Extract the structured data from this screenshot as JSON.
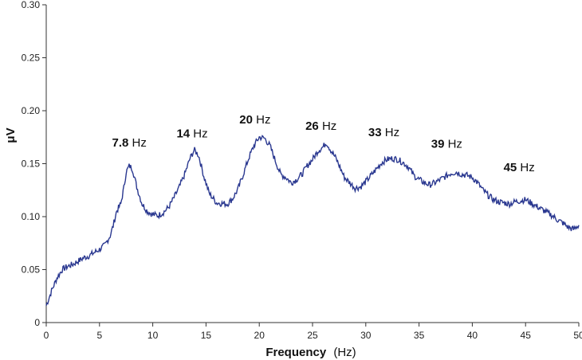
{
  "chart_data": {
    "type": "line",
    "title": "",
    "xlabel_main": "Frequency",
    "xlabel_unit": "(Hz)",
    "ylabel": "μV",
    "xlim": [
      0,
      50
    ],
    "ylim": [
      0,
      0.3
    ],
    "x_ticks": [
      "0",
      "5",
      "10",
      "15",
      "20",
      "25",
      "30",
      "35",
      "40",
      "45",
      "50"
    ],
    "y_ticks": [
      "0",
      "0.05",
      "0.10",
      "0.15",
      "0.20",
      "0.25",
      "0.30"
    ],
    "grid": false,
    "line_color": "#2a3890",
    "series": [
      {
        "x": [
          0,
          0.5,
          1,
          1.5,
          2,
          2.5,
          3,
          3.5,
          4,
          4.5,
          5,
          5.5,
          6,
          6.3,
          6.6,
          7,
          7.3,
          7.5,
          7.8,
          8.1,
          8.5,
          9,
          9.5,
          10,
          10.5,
          11,
          11.5,
          12,
          12.5,
          13,
          13.5,
          13.9,
          14.3,
          14.8,
          15.3,
          16,
          17,
          17.5,
          18,
          18.5,
          19,
          19.5,
          20,
          20.5,
          21,
          21.5,
          22,
          22.5,
          23,
          23.5,
          24,
          24.5,
          25,
          25.5,
          26,
          26.3,
          26.7,
          27.2,
          28,
          28.5,
          29,
          29.5,
          30,
          30.5,
          31,
          31.5,
          32,
          32.5,
          33,
          33.5,
          34,
          34.5,
          35,
          35.5,
          36,
          36.5,
          37,
          37.5,
          38,
          38.5,
          39,
          39.5,
          40,
          40.5,
          41,
          41.5,
          42,
          42.5,
          43,
          43.5,
          44,
          44.5,
          45,
          45.5,
          46,
          46.5,
          47,
          47.5,
          48,
          48.5,
          49,
          49.5,
          50
        ],
        "y": [
          0.016,
          0.03,
          0.042,
          0.05,
          0.053,
          0.055,
          0.058,
          0.061,
          0.063,
          0.066,
          0.069,
          0.073,
          0.082,
          0.092,
          0.105,
          0.112,
          0.128,
          0.142,
          0.148,
          0.145,
          0.128,
          0.112,
          0.105,
          0.102,
          0.101,
          0.104,
          0.109,
          0.118,
          0.128,
          0.14,
          0.155,
          0.163,
          0.158,
          0.138,
          0.122,
          0.113,
          0.112,
          0.117,
          0.126,
          0.14,
          0.155,
          0.167,
          0.175,
          0.174,
          0.167,
          0.153,
          0.14,
          0.137,
          0.132,
          0.135,
          0.14,
          0.148,
          0.154,
          0.162,
          0.166,
          0.17,
          0.163,
          0.155,
          0.137,
          0.132,
          0.127,
          0.128,
          0.133,
          0.139,
          0.145,
          0.151,
          0.154,
          0.155,
          0.154,
          0.151,
          0.147,
          0.139,
          0.135,
          0.132,
          0.13,
          0.132,
          0.135,
          0.138,
          0.141,
          0.142,
          0.14,
          0.139,
          0.137,
          0.132,
          0.125,
          0.12,
          0.116,
          0.114,
          0.113,
          0.112,
          0.114,
          0.115,
          0.116,
          0.113,
          0.11,
          0.107,
          0.104,
          0.101,
          0.097,
          0.094,
          0.09,
          0.088,
          0.092
        ]
      }
    ],
    "annotations": [
      {
        "bold": "7.8",
        "unit": " Hz",
        "x": 7.8,
        "y": 0.166
      },
      {
        "bold": "14",
        "unit": " Hz",
        "x": 13.7,
        "y": 0.175
      },
      {
        "bold": "20",
        "unit": " Hz",
        "x": 19.6,
        "y": 0.188
      },
      {
        "bold": "26",
        "unit": " Hz",
        "x": 25.8,
        "y": 0.182
      },
      {
        "bold": "33",
        "unit": " Hz",
        "x": 31.7,
        "y": 0.176
      },
      {
        "bold": "39",
        "unit": " Hz",
        "x": 37.6,
        "y": 0.165
      },
      {
        "bold": "45",
        "unit": " Hz",
        "x": 44.4,
        "y": 0.143
      }
    ]
  }
}
